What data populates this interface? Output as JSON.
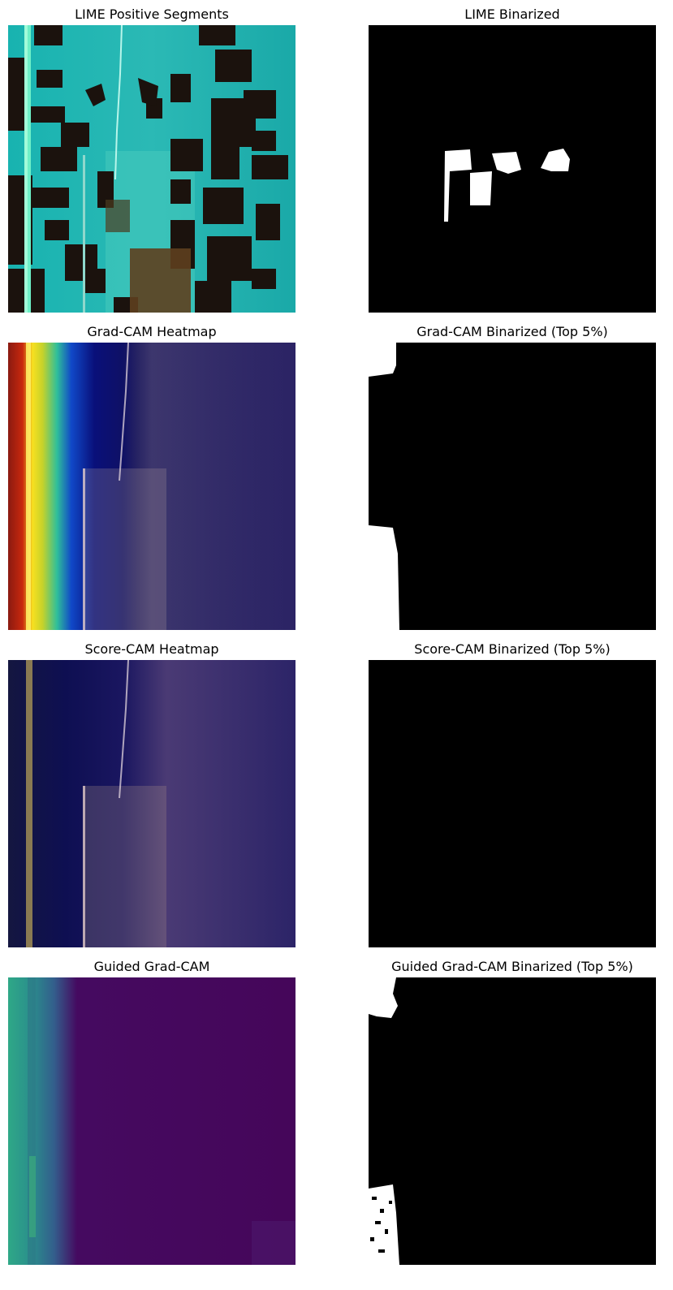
{
  "figure": {
    "panels": [
      {
        "id": "lime-positive",
        "title": "LIME Positive Segments"
      },
      {
        "id": "lime-binarized",
        "title": "LIME Binarized"
      },
      {
        "id": "gradcam-heatmap",
        "title": "Grad-CAM Heatmap"
      },
      {
        "id": "gradcam-binarized",
        "title": "Grad-CAM Binarized (Top 5%)"
      },
      {
        "id": "scorecam-heatmap",
        "title": "Score-CAM Heatmap"
      },
      {
        "id": "scorecam-binarized",
        "title": "Score-CAM Binarized (Top 5%)"
      },
      {
        "id": "guided-gradcam",
        "title": "Guided Grad-CAM"
      },
      {
        "id": "guided-gradcam-binarized",
        "title": "Guided Grad-CAM Binarized (Top 5%)"
      }
    ]
  }
}
